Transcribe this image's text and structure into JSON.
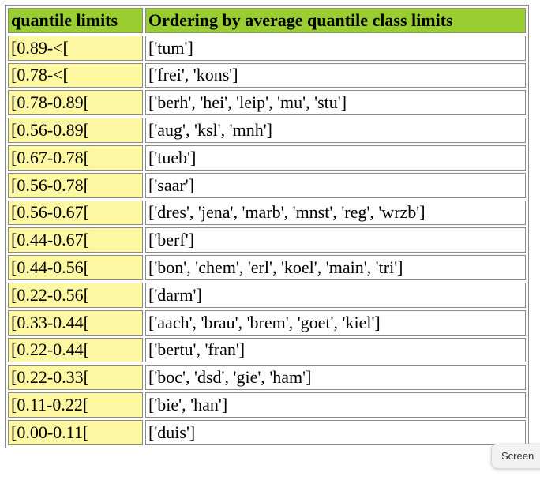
{
  "table": {
    "headers": [
      "quantile limits",
      "Ordering by average quantile class limits"
    ],
    "rows": [
      {
        "limit": "[0.89-<[",
        "order": "['tum']"
      },
      {
        "limit": "[0.78-<[",
        "order": "['frei', 'kons']"
      },
      {
        "limit": "[0.78-0.89[",
        "order": "['berh', 'hei', 'leip', 'mu', 'stu']"
      },
      {
        "limit": "[0.56-0.89[",
        "order": "['aug', 'ksl', 'mnh']"
      },
      {
        "limit": "[0.67-0.78[",
        "order": "['tueb']"
      },
      {
        "limit": "[0.56-0.78[",
        "order": "['saar']"
      },
      {
        "limit": "[0.56-0.67[",
        "order": "['dres', 'jena', 'marb', 'mnst', 'reg', 'wrzb']"
      },
      {
        "limit": "[0.44-0.67[",
        "order": "['berf']"
      },
      {
        "limit": "[0.44-0.56[",
        "order": "['bon', 'chem', 'erl', 'koel', 'main', 'tri']"
      },
      {
        "limit": "[0.22-0.56[",
        "order": "['darm']"
      },
      {
        "limit": "[0.33-0.44[",
        "order": "['aach', 'brau', 'brem', 'goet', 'kiel']"
      },
      {
        "limit": "[0.22-0.44[",
        "order": "['bertu', 'fran']"
      },
      {
        "limit": "[0.22-0.33[",
        "order": "['boc', 'dsd', 'gie', 'ham']"
      },
      {
        "limit": "[0.11-0.22[",
        "order": "['bie', 'han']"
      },
      {
        "limit": "[0.00-0.11[",
        "order": "['duis']"
      }
    ]
  },
  "overlay": {
    "screenshot_tab_label": "Screen"
  },
  "colors": {
    "header_bg": "#9acd32",
    "limit_cell_bg": "#fff8a3",
    "order_cell_bg": "#ffffff",
    "border": "#8a8a8a"
  }
}
